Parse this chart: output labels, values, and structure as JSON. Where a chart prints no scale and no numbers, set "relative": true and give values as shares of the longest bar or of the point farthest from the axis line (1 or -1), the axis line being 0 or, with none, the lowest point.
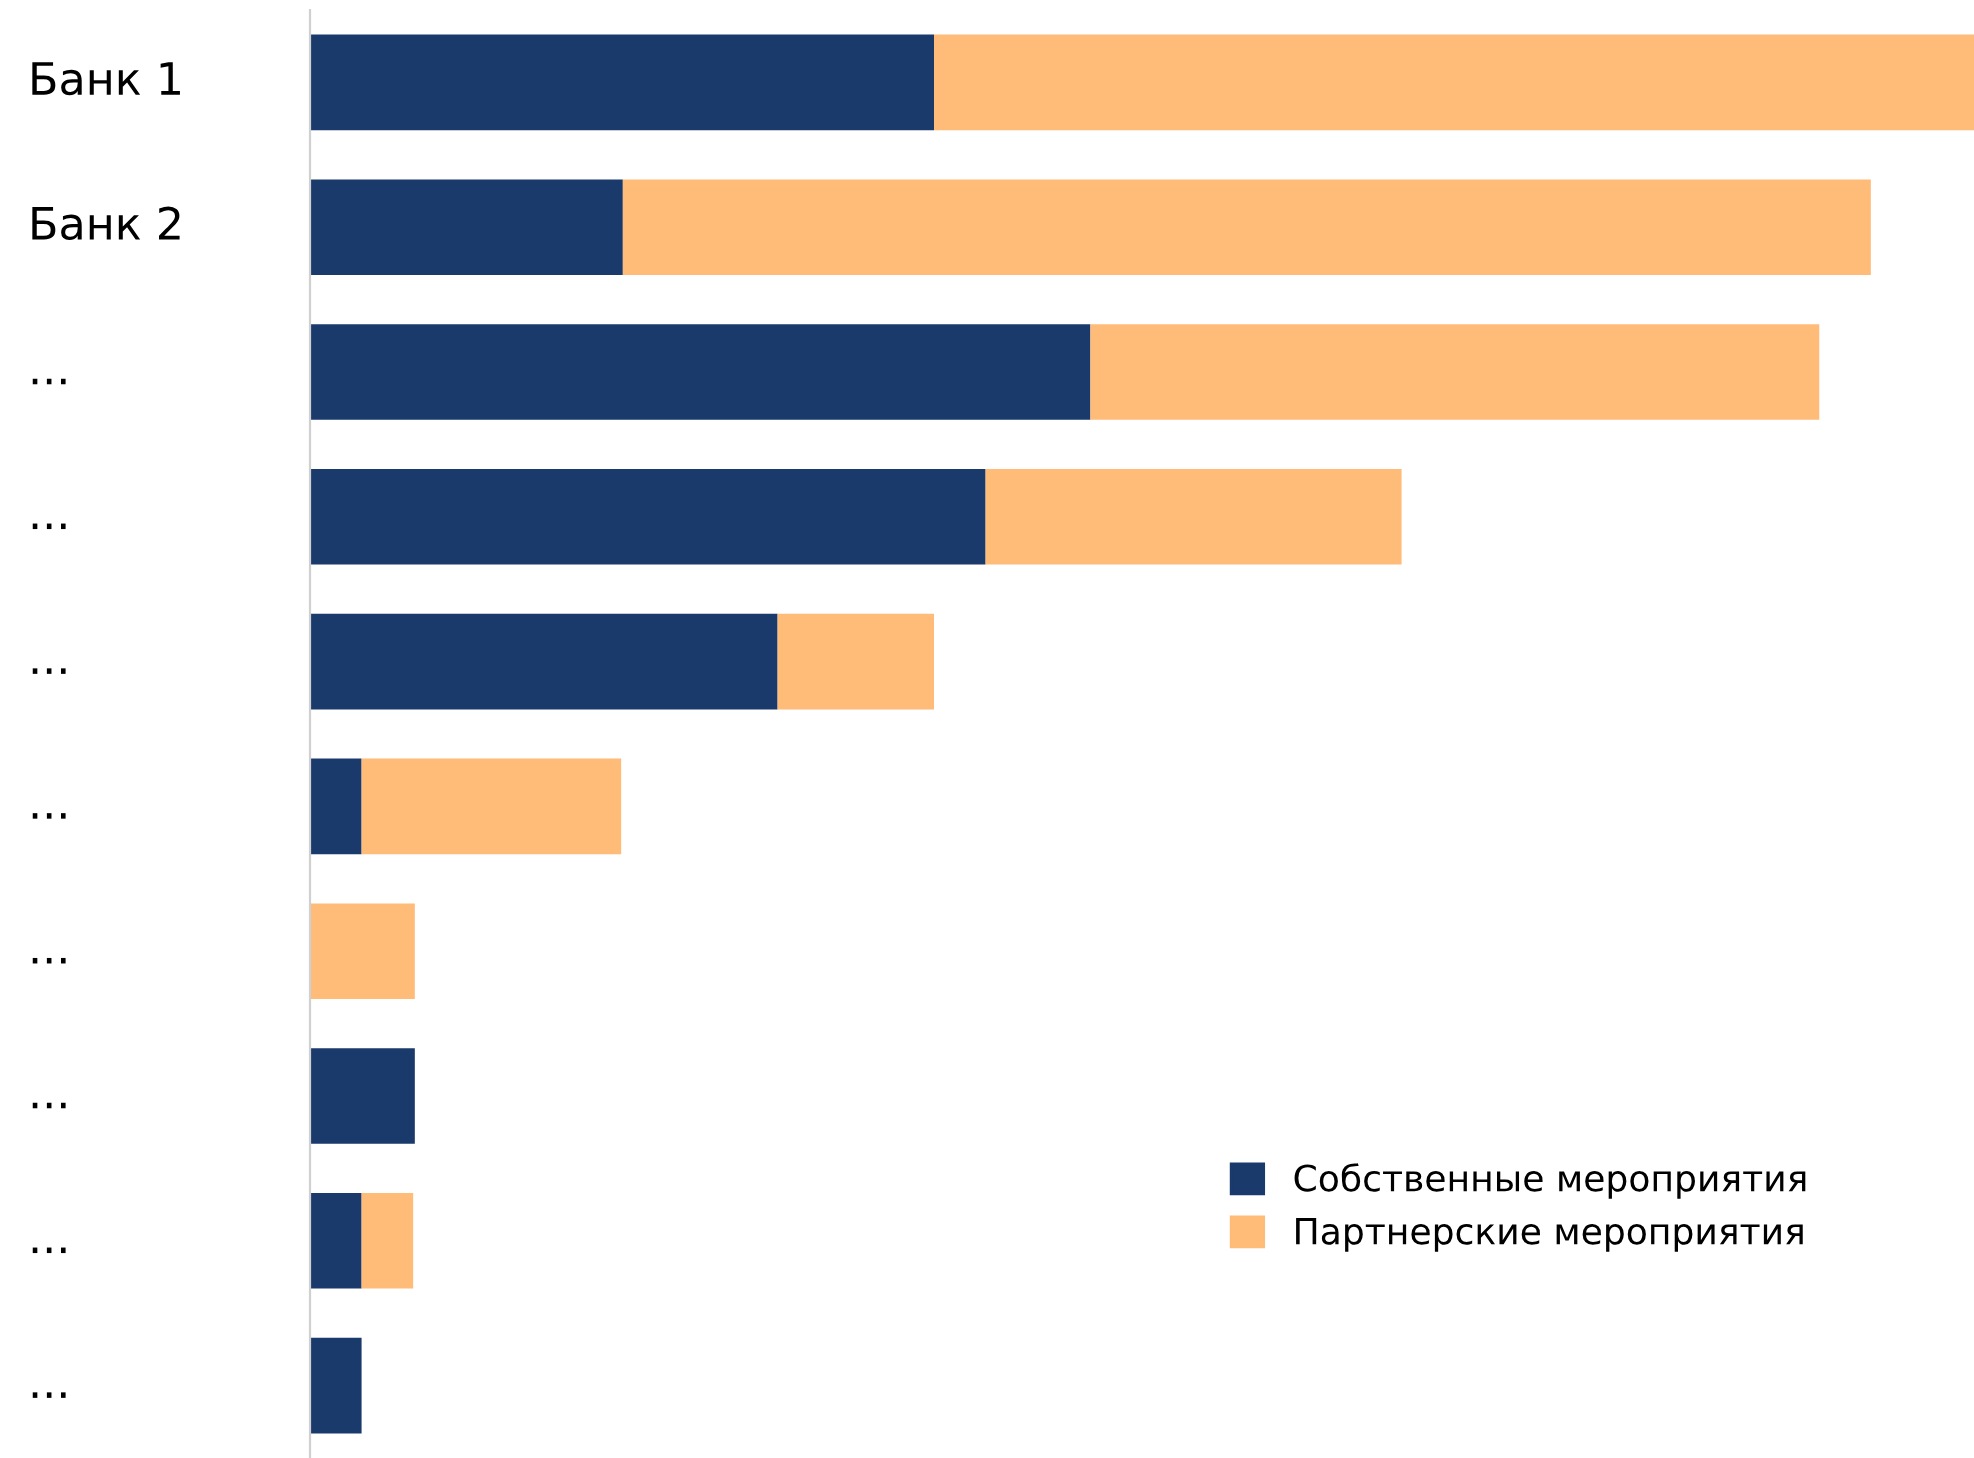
{
  "chart_data": {
    "type": "bar",
    "orientation": "horizontal",
    "stacked": true,
    "relative": true,
    "categories": [
      "Банк 1",
      "Банк 2",
      "...",
      "...",
      "...",
      "...",
      "...",
      "...",
      "...",
      "..."
    ],
    "series": [
      {
        "name": "Собственные мероприятия",
        "color": "#1a3a6b",
        "values": [
          0.375,
          0.188,
          0.469,
          0.406,
          0.281,
          0.031,
          0,
          0.063,
          0.031,
          0.031
        ]
      },
      {
        "name": "Партнерские мероприятия",
        "color": "#ffbb78",
        "values": [
          0.625,
          0.75,
          0.438,
          0.25,
          0.094,
          0.156,
          0.063,
          0,
          0.031,
          0
        ]
      }
    ],
    "legend": "bottom right"
  }
}
